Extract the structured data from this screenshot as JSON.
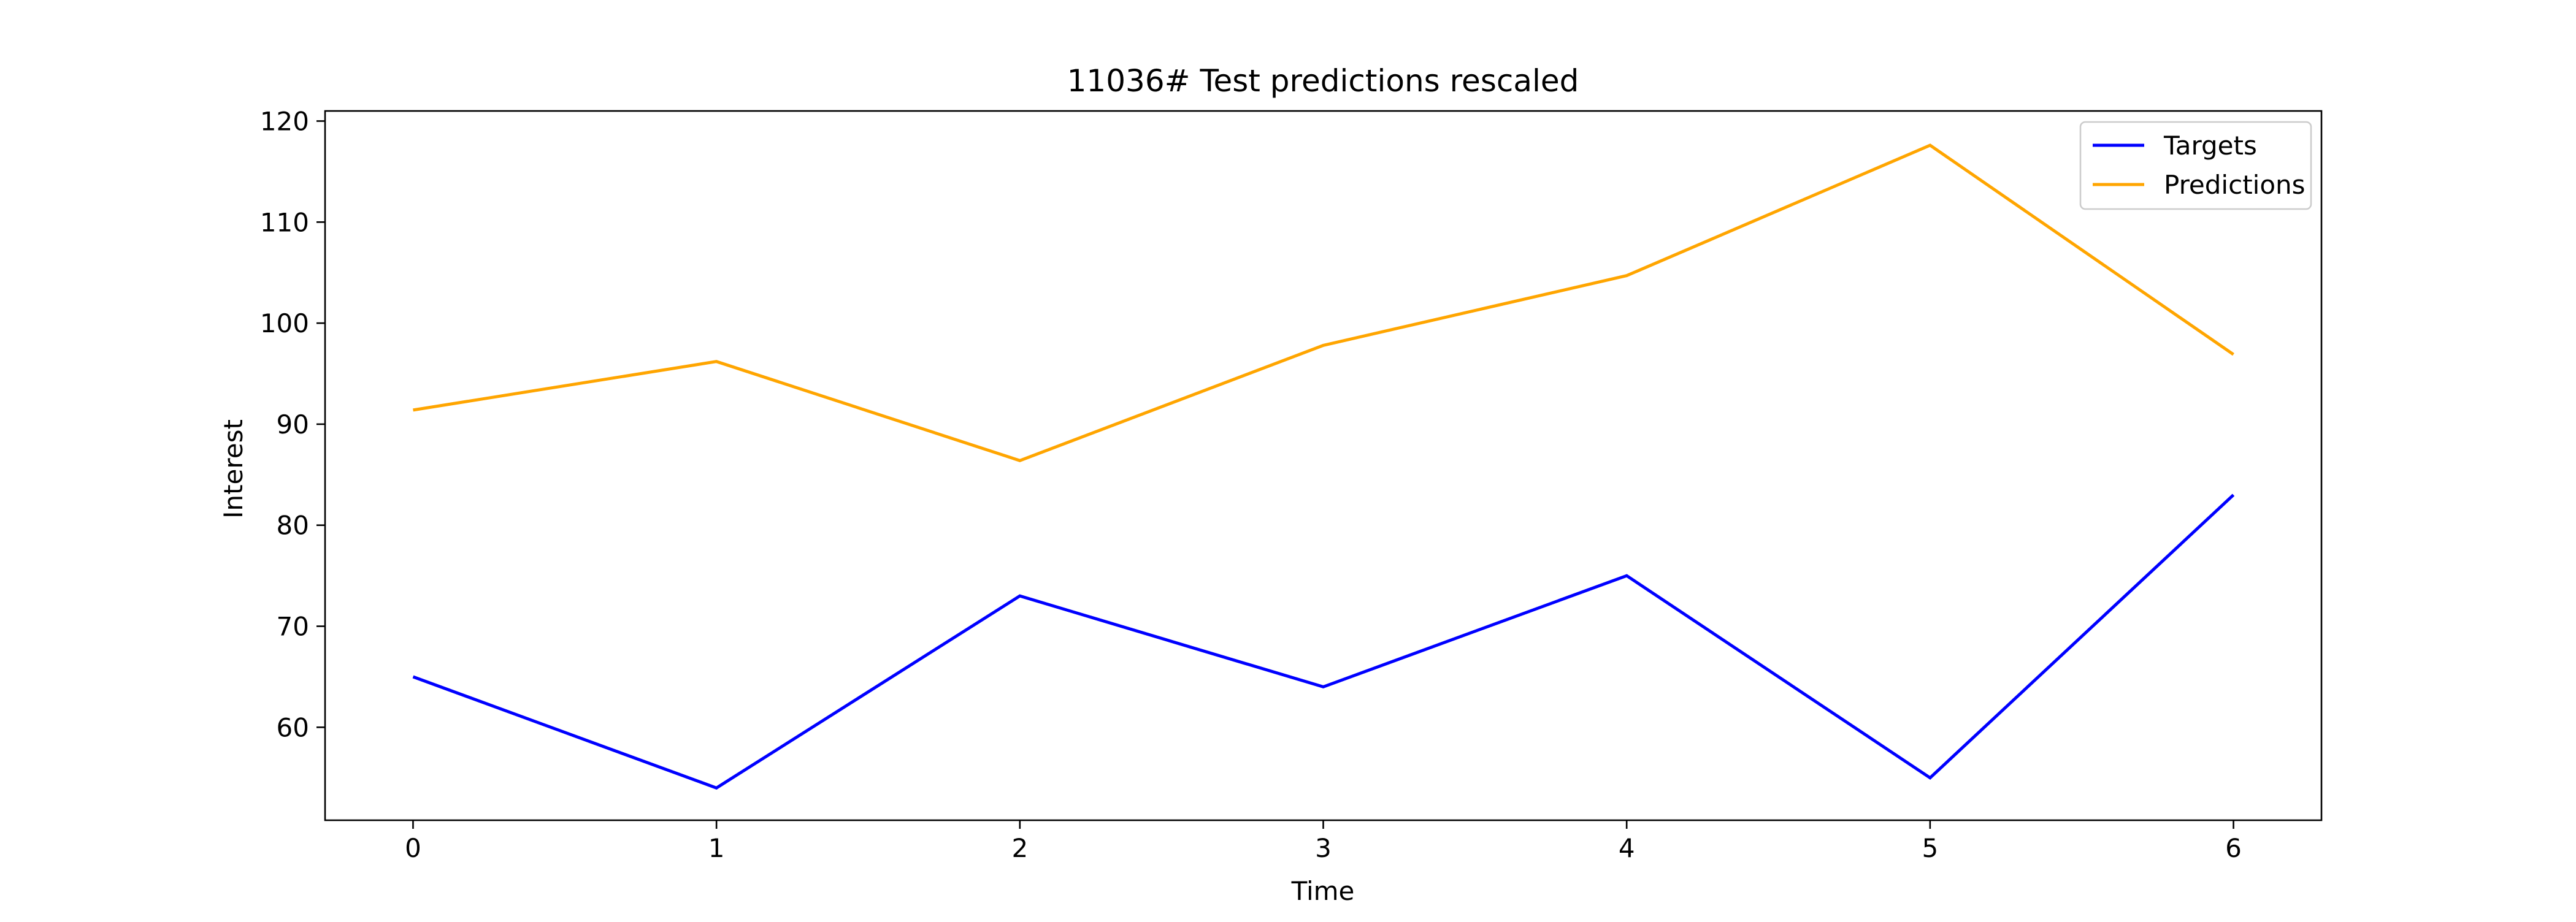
{
  "chart_data": {
    "type": "line",
    "title": "11036# Test predictions rescaled",
    "xlabel": "Time",
    "ylabel": "Interest",
    "x": [
      0,
      1,
      2,
      3,
      4,
      5,
      6
    ],
    "xticks": [
      "0",
      "1",
      "2",
      "3",
      "4",
      "5",
      "6"
    ],
    "yticks": [
      "60",
      "70",
      "80",
      "90",
      "100",
      "110",
      "120"
    ],
    "xlim": [
      -0.29,
      6.29
    ],
    "ylim": [
      50.8,
      121
    ],
    "grid": false,
    "legend_position": "top-right",
    "series": [
      {
        "name": "Targets",
        "color": "#0000ff",
        "values": [
          65,
          54,
          73,
          64,
          75,
          55,
          83
        ]
      },
      {
        "name": "Predictions",
        "color": "#ffa500",
        "values": [
          91.4,
          96.2,
          86.4,
          97.8,
          104.7,
          117.6,
          96.9
        ]
      }
    ]
  }
}
